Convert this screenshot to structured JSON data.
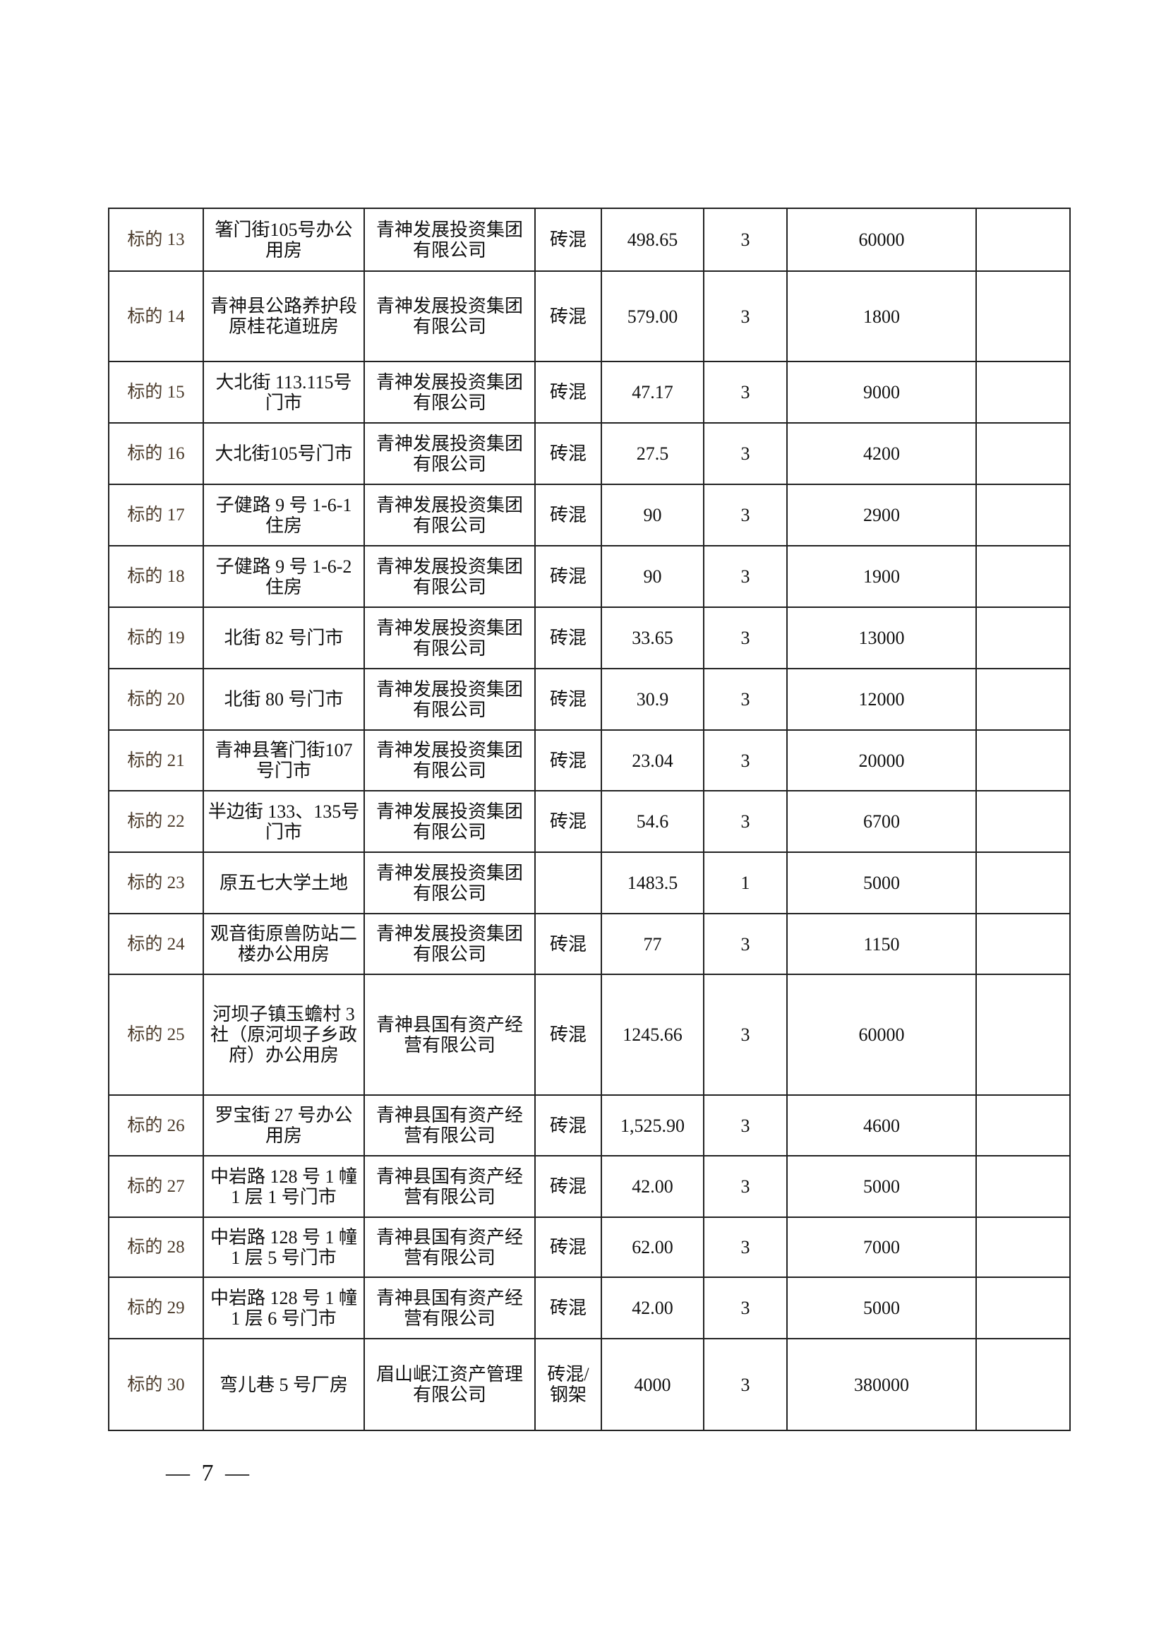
{
  "table": {
    "rows": [
      {
        "id": "标的 13",
        "name": "箸门街105号办公用房",
        "owner": "青神发展投资集团有限公司",
        "structure": "砖混",
        "area": "498.65",
        "term": "3",
        "price": "60000",
        "note": ""
      },
      {
        "id": "标的 14",
        "name": "青神县公路养护段原桂花道班房",
        "owner": "青神发展投资集团有限公司",
        "structure": "砖混",
        "area": "579.00",
        "term": "3",
        "price": "1800",
        "note": ""
      },
      {
        "id": "标的 15",
        "name": "大北街 113.115号门市",
        "owner": "青神发展投资集团有限公司",
        "structure": "砖混",
        "area": "47.17",
        "term": "3",
        "price": "9000",
        "note": ""
      },
      {
        "id": "标的 16",
        "name": "大北街105号门市",
        "owner": "青神发展投资集团有限公司",
        "structure": "砖混",
        "area": "27.5",
        "term": "3",
        "price": "4200",
        "note": ""
      },
      {
        "id": "标的 17",
        "name": "子健路 9 号 1-6-1 住房",
        "owner": "青神发展投资集团有限公司",
        "structure": "砖混",
        "area": "90",
        "term": "3",
        "price": "2900",
        "note": ""
      },
      {
        "id": "标的 18",
        "name": "子健路 9 号 1-6-2 住房",
        "owner": "青神发展投资集团有限公司",
        "structure": "砖混",
        "area": "90",
        "term": "3",
        "price": "1900",
        "note": ""
      },
      {
        "id": "标的 19",
        "name": "北街 82 号门市",
        "owner": "青神发展投资集团有限公司",
        "structure": "砖混",
        "area": "33.65",
        "term": "3",
        "price": "13000",
        "note": ""
      },
      {
        "id": "标的 20",
        "name": "北街 80 号门市",
        "owner": "青神发展投资集团有限公司",
        "structure": "砖混",
        "area": "30.9",
        "term": "3",
        "price": "12000",
        "note": ""
      },
      {
        "id": "标的 21",
        "name": "青神县箸门街107号门市",
        "owner": "青神发展投资集团有限公司",
        "structure": "砖混",
        "area": "23.04",
        "term": "3",
        "price": "20000",
        "note": ""
      },
      {
        "id": "标的 22",
        "name": "半边街 133、135号门市",
        "owner": "青神发展投资集团有限公司",
        "structure": "砖混",
        "area": "54.6",
        "term": "3",
        "price": "6700",
        "note": ""
      },
      {
        "id": "标的 23",
        "name": "原五七大学土地",
        "owner": "青神发展投资集团有限公司",
        "structure": "",
        "area": "1483.5",
        "term": "1",
        "price": "5000",
        "note": ""
      },
      {
        "id": "标的 24",
        "name": "观音街原兽防站二楼办公用房",
        "owner": "青神发展投资集团有限公司",
        "structure": "砖混",
        "area": "77",
        "term": "3",
        "price": "1150",
        "note": ""
      },
      {
        "id": "标的 25",
        "name": "河坝子镇玉蟾村 3 社（原河坝子乡政府）办公用房",
        "owner": "青神县国有资产经营有限公司",
        "structure": "砖混",
        "area": "1245.66",
        "term": "3",
        "price": "60000",
        "note": ""
      },
      {
        "id": "标的 26",
        "name": "罗宝街 27 号办公用房",
        "owner": "青神县国有资产经营有限公司",
        "structure": "砖混",
        "area": "1,525.90",
        "term": "3",
        "price": "4600",
        "note": ""
      },
      {
        "id": "标的 27",
        "name": "中岩路 128 号 1 幢 1 层 1 号门市",
        "owner": "青神县国有资产经营有限公司",
        "structure": "砖混",
        "area": "42.00",
        "term": "3",
        "price": "5000",
        "note": ""
      },
      {
        "id": "标的 28",
        "name": "中岩路 128 号 1 幢 1 层 5 号门市",
        "owner": "青神县国有资产经营有限公司",
        "structure": "砖混",
        "area": "62.00",
        "term": "3",
        "price": "7000",
        "note": ""
      },
      {
        "id": "标的 29",
        "name": "中岩路 128 号 1 幢 1 层 6 号门市",
        "owner": "青神县国有资产经营有限公司",
        "structure": "砖混",
        "area": "42.00",
        "term": "3",
        "price": "5000",
        "note": ""
      },
      {
        "id": "标的 30",
        "name": "弯儿巷 5 号厂房",
        "owner": "眉山岷江资产管理有限公司",
        "structure": "砖混/钢架",
        "area": "4000",
        "term": "3",
        "price": "380000",
        "note": ""
      }
    ]
  },
  "page_number": "— 7 —"
}
